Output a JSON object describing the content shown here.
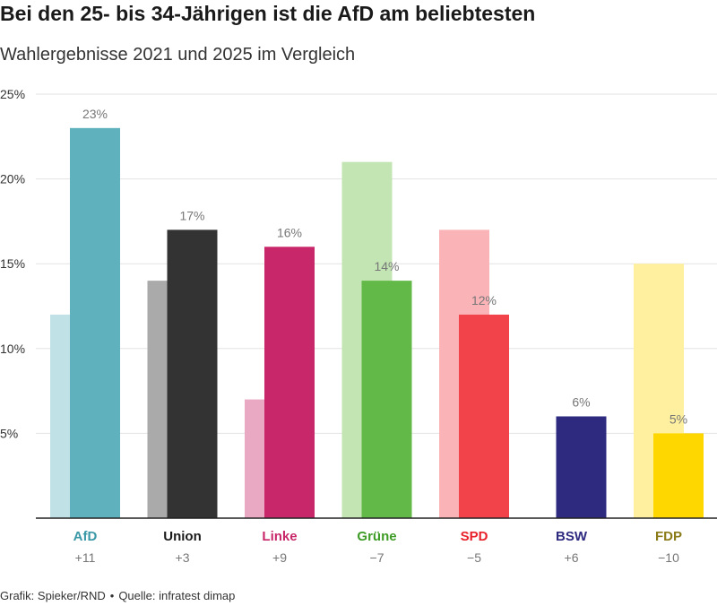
{
  "title": "Bei den 25- bis 34-Jährigen ist die AfD am beliebtesten",
  "subtitle": "Wahlergebnisse 2021 und 2025 im Vergleich",
  "footer": {
    "grafik": "Grafik: Spieker/RND",
    "separator": "•",
    "quelle": "Quelle: infratest dimap"
  },
  "chart_data": {
    "type": "bar",
    "ylim": [
      0,
      25
    ],
    "y_ticks": [
      5,
      10,
      15,
      20,
      25
    ],
    "y_tick_labels": [
      "5%",
      "10%",
      "15%",
      "20%",
      "25%"
    ],
    "grid": true,
    "categories": [
      "AfD",
      "Union",
      "Linke",
      "Grüne",
      "SPD",
      "BSW",
      "FDP"
    ],
    "changes": [
      "+11",
      "+3",
      "+9",
      "−7",
      "−5",
      "+6",
      "−10"
    ],
    "series": [
      {
        "values": [
          12,
          14,
          7,
          21,
          17,
          0,
          15
        ]
      },
      {
        "values": [
          23,
          17,
          16,
          14,
          12,
          6,
          5
        ],
        "labels": [
          "23%",
          "17%",
          "16%",
          "14%",
          "12%",
          "6%",
          "5%"
        ]
      }
    ],
    "colors_2025": [
      "#5fb1be",
      "#333333",
      "#c8276a",
      "#63b948",
      "#f2434b",
      "#2e2a80",
      "#ffd700"
    ],
    "colors_2021": [
      "#c0e1e6",
      "#aaaaaa",
      "#e9a9c3",
      "#c3e4b3",
      "#fab4b7",
      "#b2b0d6",
      "#fff0a0"
    ],
    "category_colors": [
      "#3a98a6",
      "#1a1a1a",
      "#c8276a",
      "#3e9c26",
      "#e8212a",
      "#2e2a80",
      "#8a7a18"
    ]
  }
}
